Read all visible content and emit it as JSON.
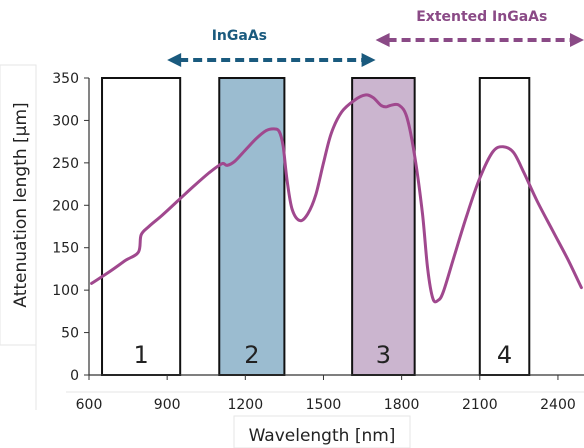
{
  "chart_data": {
    "type": "line",
    "xlabel": "Wavelength [nm]",
    "ylabel": "Attenuation length [µm]",
    "xlim": [
      600,
      2500
    ],
    "ylim": [
      0,
      350
    ],
    "x_ticks": [
      600,
      900,
      1200,
      1500,
      1800,
      2100,
      2400
    ],
    "y_ticks": [
      0,
      50,
      100,
      150,
      200,
      250,
      300,
      350
    ],
    "grid": false,
    "series": [
      {
        "color": "#a0488e",
        "x": [
          610,
          680,
          740,
          790,
          800,
          830,
          880,
          940,
          1000,
          1060,
          1110,
          1130,
          1160,
          1200,
          1240,
          1280,
          1310,
          1330,
          1345,
          1360,
          1380,
          1410,
          1440,
          1470,
          1500,
          1530,
          1570,
          1620,
          1660,
          1690,
          1720,
          1740,
          1760,
          1790,
          1820,
          1850,
          1880,
          1900,
          1920,
          1940,
          1960,
          2000,
          2050,
          2100,
          2150,
          2190,
          2230,
          2270,
          2320,
          2380,
          2440,
          2490
        ],
        "y": [
          108,
          122,
          135,
          145,
          165,
          175,
          188,
          205,
          222,
          238,
          249,
          247,
          252,
          265,
          278,
          288,
          290,
          287,
          270,
          230,
          195,
          182,
          190,
          212,
          250,
          285,
          310,
          324,
          330,
          327,
          318,
          316,
          318,
          318,
          304,
          258,
          190,
          125,
          90,
          88,
          98,
          138,
          188,
          232,
          263,
          269,
          262,
          238,
          205,
          170,
          135,
          103
        ]
      }
    ],
    "bands": [
      {
        "label": "1",
        "x0": 650,
        "x1": 950,
        "fill": "none"
      },
      {
        "label": "2",
        "x0": 1100,
        "x1": 1350,
        "fill": "#9bbcd0"
      },
      {
        "label": "3",
        "x0": 1610,
        "x1": 1850,
        "fill": "#cbb5cf"
      },
      {
        "label": "4",
        "x0": 2100,
        "x1": 2290,
        "fill": "none"
      }
    ],
    "ranges": [
      {
        "label": "InGaAs",
        "x0": 900,
        "x1": 1700,
        "color": "#1a5a7e"
      },
      {
        "label": "Extented InGaAs",
        "x0": 1700,
        "x1": 2500,
        "color": "#8a4a86"
      }
    ]
  }
}
